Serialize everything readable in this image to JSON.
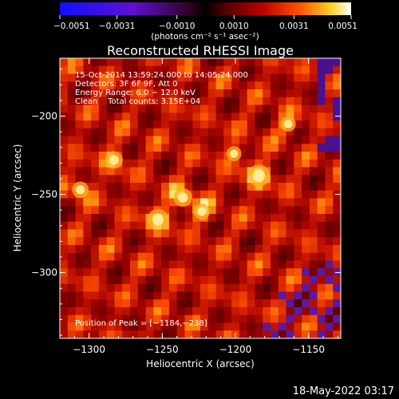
{
  "chart_data": {
    "type": "heatmap",
    "title": "Reconstructed RHESSI Image",
    "xlabel": "Heliocentric X (arcsec)",
    "ylabel": "Heliocentric Y (arcsec)",
    "xlim": [
      -1320,
      -1128
    ],
    "ylim": [
      -342,
      -163
    ],
    "x_ticks": [
      -1300,
      -1250,
      -1200,
      -1150
    ],
    "x_tick_labels": [
      "−1300",
      "−1250",
      "−1200",
      "−1150"
    ],
    "y_ticks": [
      -200,
      -250,
      -300
    ],
    "y_tick_labels": [
      "−200",
      "−250",
      "−300"
    ],
    "colorbar": {
      "min": -0.0051,
      "max": 0.0051,
      "ticks": [
        -0.0051,
        -0.0031,
        -0.001,
        0.001,
        0.0031,
        0.0051
      ],
      "tick_labels": [
        "−0.0051",
        "−0.0031",
        "−0.0010",
        "0.0010",
        "0.0031",
        "0.0051"
      ],
      "unit_label": "(photons cm⁻² s⁻¹ asec⁻²)",
      "colormap": "red-temperature"
    },
    "info_lines": [
      "15-Oct-2014 13:59:24.000 to 14:05:24.000",
      "Detectors: 3F 6F 9F, Att 0",
      "Energy Range: 6.0 − 12.0 keV",
      "Clean    Total counts: 3.15E+04"
    ],
    "peak_label": "Position of Peak = [−1184,−238]",
    "peak": [
      -1184,
      -238
    ],
    "sources": [
      {
        "x": -1184,
        "y": -238,
        "intensity": 0.0051
      },
      {
        "x": -1253,
        "y": -266,
        "intensity": 0.0046
      },
      {
        "x": -1236,
        "y": -252,
        "intensity": 0.0036
      },
      {
        "x": -1283,
        "y": -228,
        "intensity": 0.0032
      },
      {
        "x": -1306,
        "y": -247,
        "intensity": 0.0028
      },
      {
        "x": -1223,
        "y": -261,
        "intensity": 0.0027
      },
      {
        "x": -1164,
        "y": -205,
        "intensity": 0.0024
      },
      {
        "x": -1201,
        "y": -224,
        "intensity": 0.0022
      }
    ],
    "grid": false,
    "legend": "none"
  },
  "footer": {
    "timestamp": "18-May-2022 03:17"
  },
  "colors": {
    "background": "#000000",
    "foreground": "#ffffff"
  }
}
